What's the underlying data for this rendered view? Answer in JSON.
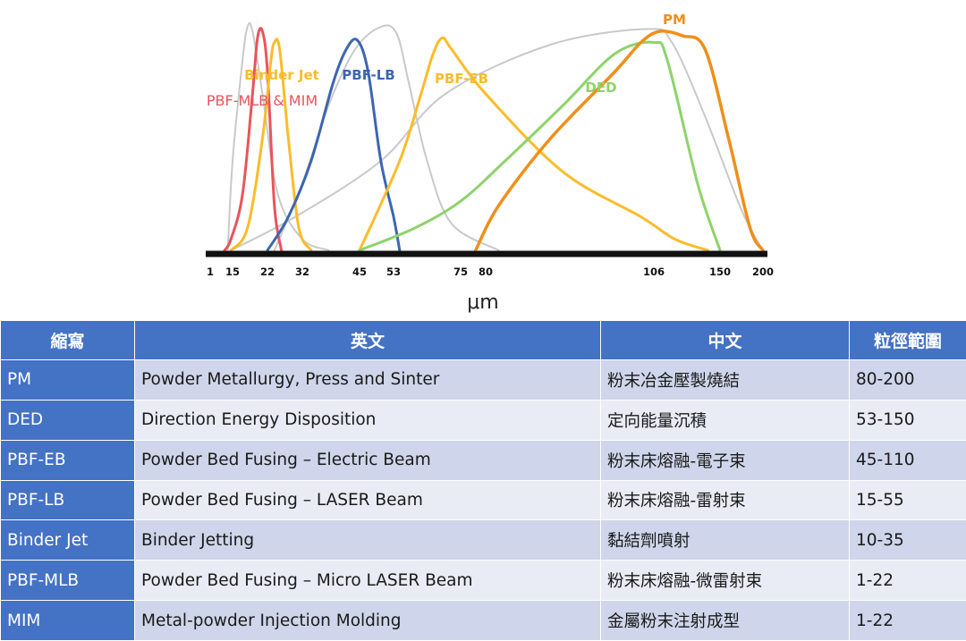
{
  "chart_data": {
    "type": "line",
    "xlabel": "μm",
    "x_ticks": [
      "1",
      "15",
      "22",
      "32",
      "45",
      "53",
      "75",
      "80",
      "106",
      "150",
      "200"
    ],
    "xlim": [
      1,
      200
    ],
    "grid": false,
    "series": [
      {
        "name": "PBF-MLB & MIM",
        "color": "#e9545c",
        "points": [
          [
            10,
            0
          ],
          [
            14,
            5
          ],
          [
            17,
            25
          ],
          [
            19,
            70
          ],
          [
            20,
            95
          ],
          [
            21,
            98
          ],
          [
            22,
            80
          ],
          [
            24,
            20
          ],
          [
            26,
            0
          ]
        ]
      },
      {
        "name": "Binder Jet",
        "color": "#fbbc2a",
        "points": [
          [
            14,
            0
          ],
          [
            18,
            10
          ],
          [
            21,
            50
          ],
          [
            23,
            85
          ],
          [
            24,
            93
          ],
          [
            25.5,
            90
          ],
          [
            28,
            50
          ],
          [
            31,
            10
          ],
          [
            34,
            0
          ]
        ]
      },
      {
        "name": "PBF-LB",
        "color": "#3c66b0",
        "points": [
          [
            22,
            0
          ],
          [
            28,
            15
          ],
          [
            34,
            40
          ],
          [
            39,
            75
          ],
          [
            42,
            90
          ],
          [
            44.5,
            94
          ],
          [
            47,
            80
          ],
          [
            50,
            40
          ],
          [
            53,
            15
          ],
          [
            55,
            0
          ]
        ]
      },
      {
        "name": "PBF-EB",
        "color": "#fbbc2a",
        "points": [
          [
            45,
            0
          ],
          [
            55,
            40
          ],
          [
            62,
            70
          ],
          [
            66,
            88
          ],
          [
            69,
            95
          ],
          [
            72,
            90
          ],
          [
            80,
            70
          ],
          [
            92,
            35
          ],
          [
            104,
            15
          ],
          [
            120,
            5
          ],
          [
            142,
            0
          ]
        ]
      },
      {
        "name": "DED",
        "color": "#8dd36b",
        "points": [
          [
            45,
            0
          ],
          [
            60,
            10
          ],
          [
            75,
            22
          ],
          [
            83,
            40
          ],
          [
            92,
            65
          ],
          [
            100,
            88
          ],
          [
            106,
            93
          ],
          [
            115,
            85
          ],
          [
            135,
            30
          ],
          [
            150,
            0
          ]
        ]
      },
      {
        "name": "PM",
        "color": "#ef8f1a",
        "points": [
          [
            78,
            0
          ],
          [
            82,
            20
          ],
          [
            90,
            50
          ],
          [
            100,
            80
          ],
          [
            104,
            93
          ],
          [
            110,
            98
          ],
          [
            125,
            96
          ],
          [
            140,
            90
          ],
          [
            160,
            50
          ],
          [
            185,
            10
          ],
          [
            200,
            0
          ]
        ]
      },
      {
        "name": "",
        "color": "#c9c9c9",
        "points": [
          [
            12,
            0
          ],
          [
            15,
            40
          ],
          [
            17,
            85
          ],
          [
            18,
            100
          ],
          [
            19,
            98
          ],
          [
            21,
            70
          ],
          [
            25,
            25
          ],
          [
            32,
            5
          ],
          [
            38,
            0
          ]
        ]
      },
      {
        "name": "",
        "color": "#c9c9c9",
        "points": [
          [
            24,
            0
          ],
          [
            32,
            30
          ],
          [
            38,
            65
          ],
          [
            44,
            90
          ],
          [
            50,
            100
          ],
          [
            54,
            97
          ],
          [
            58,
            75
          ],
          [
            64,
            40
          ],
          [
            72,
            12
          ],
          [
            82,
            0
          ]
        ]
      },
      {
        "name": "",
        "color": "#c9c9c9",
        "points": [
          [
            14,
            0
          ],
          [
            30,
            15
          ],
          [
            50,
            40
          ],
          [
            70,
            70
          ],
          [
            90,
            92
          ],
          [
            105,
            99
          ],
          [
            118,
            93
          ],
          [
            140,
            60
          ],
          [
            175,
            18
          ],
          [
            200,
            0
          ]
        ]
      }
    ]
  },
  "table": {
    "headers": [
      "縮寫",
      "英文",
      "中文",
      "粒徑範圍"
    ],
    "rows": [
      {
        "abbr": "PM",
        "english": "Powder Metallurgy, Press and Sinter",
        "chinese": "粉末冶金壓製燒結",
        "range": "80-200"
      },
      {
        "abbr": "DED",
        "english": "Direction Energy Disposition",
        "chinese": "定向能量沉積",
        "range": "53-150"
      },
      {
        "abbr": "PBF-EB",
        "english": "Powder Bed Fusing – Electric Beam",
        "chinese": "粉末床熔融-電子束",
        "range": "45-110"
      },
      {
        "abbr": "PBF-LB",
        "english": "Powder Bed Fusing – LASER Beam",
        "chinese": "粉末床熔融-雷射束",
        "range": "15-55"
      },
      {
        "abbr": "Binder Jet",
        "english": "Binder Jetting",
        "chinese": "黏結劑噴射",
        "range": "10-35"
      },
      {
        "abbr": "PBF-MLB",
        "english": "Powder Bed Fusing – Micro LASER Beam",
        "chinese": "粉末床熔融-微雷射束",
        "range": "1-22"
      },
      {
        "abbr": "MIM",
        "english": "Metal-powder Injection Molding",
        "chinese": "金屬粉末注射成型",
        "range": "1-22"
      }
    ]
  }
}
